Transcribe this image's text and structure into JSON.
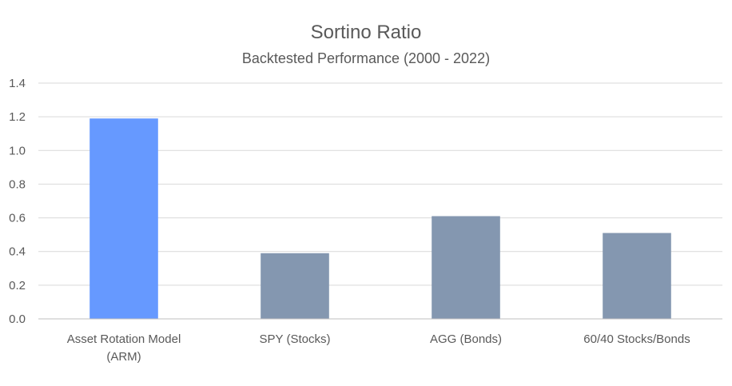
{
  "chart_data": {
    "type": "bar",
    "title": "Sortino Ratio",
    "subtitle": "Backtested Performance (2000 - 2022)",
    "categories": [
      [
        "Asset Rotation Model",
        "(ARM)"
      ],
      [
        "SPY (Stocks)"
      ],
      [
        "AGG (Bonds)"
      ],
      [
        "60/40 Stocks/Bonds"
      ]
    ],
    "values": [
      1.19,
      0.39,
      0.61,
      0.51
    ],
    "bar_colors": [
      "#6699ff",
      "#8497b0",
      "#8497b0",
      "#8497b0"
    ],
    "ylim": [
      0,
      1.4
    ],
    "yticks": [
      "0.0",
      "0.2",
      "0.4",
      "0.6",
      "0.8",
      "1.0",
      "1.2",
      "1.4"
    ],
    "grid": true,
    "legend": "none"
  }
}
